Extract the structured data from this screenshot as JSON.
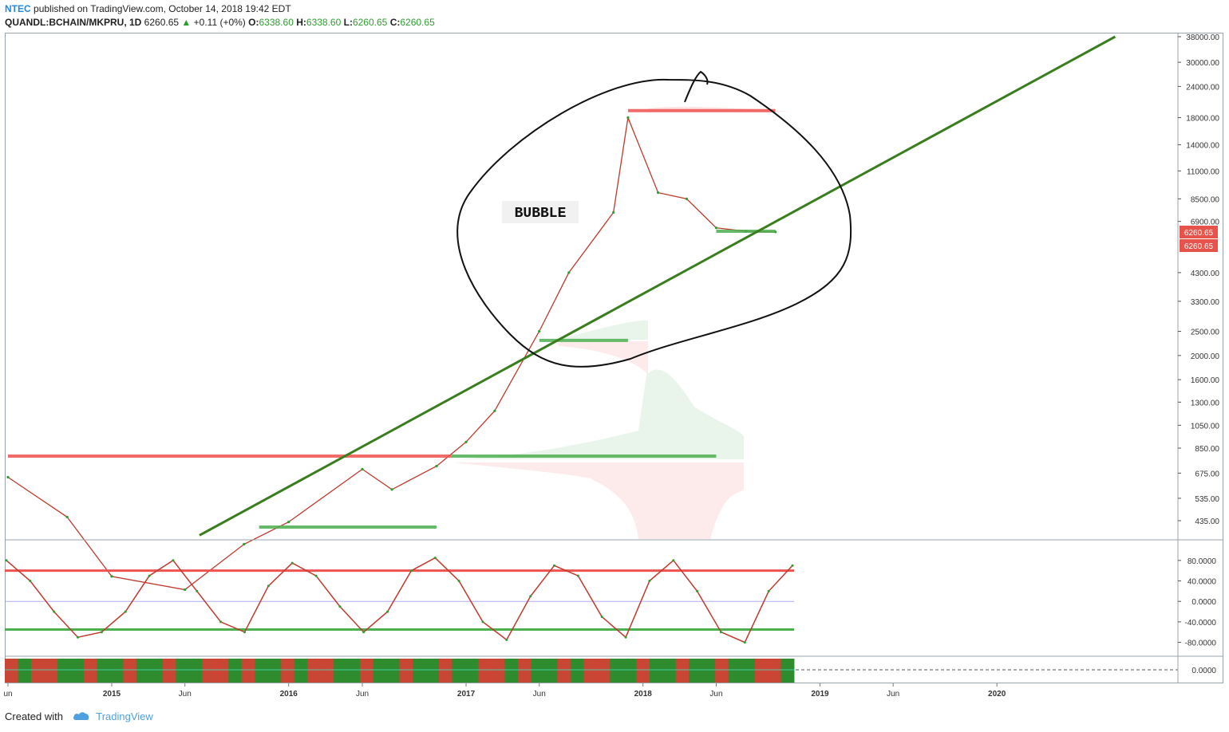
{
  "header": {
    "publisher": "NTEC",
    "published_text": "published on TradingView.com, October 14, 2018 19:42 EDT",
    "symbol": "QUANDL:BCHAIN/MKPRU, 1D",
    "last": "6260.65",
    "change": "+0.11 (+0%)",
    "o_label": "O:",
    "o_value": "6338.60",
    "h_label": "H:",
    "h_value": "6338.60",
    "l_label": "L:",
    "l_value": "6260.65",
    "c_label": "C:",
    "c_value": "6260.65"
  },
  "annotation": {
    "label": "BUBBLE"
  },
  "price_badges": [
    "6260.65",
    "6260.65"
  ],
  "footer": {
    "created_with": "Created with",
    "brand": "TradingView"
  },
  "colors": {
    "up": "#2e9d2e",
    "down": "#e53935",
    "trendline": "#3a7d1e",
    "resistance": "#ef5350",
    "support": "#4caf50",
    "oscillator_blue": "#8c8cf0",
    "badge": "#e5534b",
    "tv_blue": "#4ea0e0"
  },
  "chart_data": [
    {
      "type": "line",
      "title": "QUANDL:BCHAIN/MKPRU, 1D",
      "y_scale": "log",
      "y_ticks": [
        "38000.00",
        "30000.00",
        "24000.00",
        "18000.00",
        "14000.00",
        "11000.00",
        "8500.00",
        "6900.00",
        "4300.00",
        "3300.00",
        "2500.00",
        "2000.00",
        "1600.00",
        "1300.00",
        "1050.00",
        "850.00",
        "675.00",
        "535.00",
        "435.00"
      ],
      "x_ticks": [
        "un",
        "2015",
        "Jun",
        "2016",
        "Jun",
        "2017",
        "Jun",
        "2018",
        "Jun",
        "2019",
        "Jun",
        "2020"
      ],
      "x": [
        "2014-06",
        "2014-10",
        "2015-01",
        "2015-06",
        "2015-10",
        "2016-01",
        "2016-06",
        "2016-08",
        "2016-11",
        "2017-01",
        "2017-03",
        "2017-06",
        "2017-08",
        "2017-11",
        "2017-12",
        "2018-02",
        "2018-04",
        "2018-06",
        "2018-08",
        "2018-10"
      ],
      "values": [
        650,
        450,
        260,
        230,
        350,
        430,
        700,
        580,
        720,
        900,
        1200,
        2500,
        4300,
        7500,
        18000,
        9000,
        8500,
        6500,
        6300,
        6260
      ],
      "last_value": 6260.65,
      "horizontal_levels": [
        {
          "value": 19200,
          "color": "red",
          "from": "2017-12",
          "to": "2018-10"
        },
        {
          "value": 6300,
          "color": "green",
          "from": "2018-06",
          "to": "2018-10"
        },
        {
          "value": 2300,
          "color": "green",
          "from": "2017-06",
          "to": "2017-12"
        },
        {
          "value": 790,
          "color": "red",
          "from": "2014-06",
          "to": "2016-12"
        },
        {
          "value": 790,
          "color": "green",
          "from": "2016-12",
          "to": "2018-06"
        },
        {
          "value": 410,
          "color": "green",
          "from": "2015-11",
          "to": "2016-11"
        }
      ],
      "trendline": {
        "from": [
          "2015-07",
          380
        ],
        "to": [
          "2020-09",
          38000
        ]
      }
    },
    {
      "type": "line",
      "title": "",
      "y_ticks": [
        "80.0000",
        "40.0000",
        "0.0000",
        "-40.0000",
        "-80.0000"
      ],
      "ylim": [
        -90,
        100
      ],
      "levels": [
        60,
        -55
      ],
      "series": [
        {
          "values": [
            80,
            40,
            -20,
            -70,
            -60,
            -20,
            50,
            80,
            20,
            -40,
            -60,
            30,
            75,
            50,
            -10,
            -60,
            -20,
            60,
            85,
            40,
            -40,
            -75,
            10,
            70,
            50,
            -30,
            -70,
            40,
            80,
            20,
            -60,
            -80,
            20,
            70
          ]
        }
      ]
    },
    {
      "type": "area",
      "title": "",
      "y_ticks": [
        "0.0000"
      ],
      "ylim": [
        -1,
        1
      ]
    }
  ]
}
